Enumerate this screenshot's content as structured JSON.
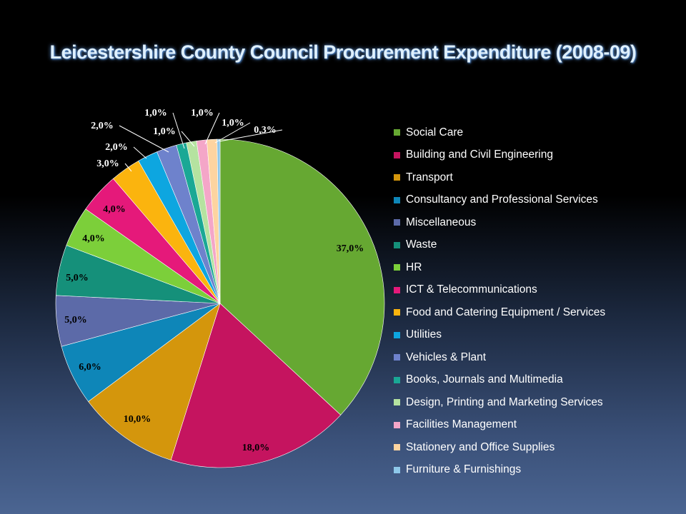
{
  "title": "Leicestershire County Council Procurement Expenditure (2008-09)",
  "chart_data": {
    "type": "pie",
    "title": "Leicestershire County Council Procurement Expenditure (2008-09)",
    "legend_position": "right",
    "slices": [
      {
        "name": "Social Care",
        "value": 37.0,
        "label": "37,0%",
        "color": "#66a832"
      },
      {
        "name": "Building and Civil Engineering",
        "value": 18.0,
        "label": "18,0%",
        "color": "#c5145f"
      },
      {
        "name": "Transport",
        "value": 10.0,
        "label": "10,0%",
        "color": "#d4960c"
      },
      {
        "name": "Consultancy and Professional Services",
        "value": 6.0,
        "label": "6,0%",
        "color": "#0e86b8"
      },
      {
        "name": "Miscellaneous",
        "value": 5.0,
        "label": "5,0%",
        "color": "#5c6aa8"
      },
      {
        "name": "Waste",
        "value": 5.0,
        "label": "5,0%",
        "color": "#15907a"
      },
      {
        "name": "HR",
        "value": 4.0,
        "label": "4,0%",
        "color": "#7ccf3a"
      },
      {
        "name": "ICT & Telecommunications",
        "value": 4.0,
        "label": "4,0%",
        "color": "#e5197a"
      },
      {
        "name": "Food and Catering Equipment / Services",
        "value": 3.0,
        "label": "3,0%",
        "color": "#fbb40e"
      },
      {
        "name": "Utilities",
        "value": 2.0,
        "label": "2,0%",
        "color": "#0da6e0"
      },
      {
        "name": "Vehicles & Plant",
        "value": 2.0,
        "label": "2,0%",
        "color": "#6e82cc"
      },
      {
        "name": "Books, Journals and Multimedia",
        "value": 1.0,
        "label": "1,0%",
        "color": "#1aa895"
      },
      {
        "name": "Design, Printing and Marketing Services",
        "value": 1.0,
        "label": "1,0%",
        "color": "#b5e3a0"
      },
      {
        "name": "Facilities Management",
        "value": 1.0,
        "label": "1,0%",
        "color": "#f4a6c8"
      },
      {
        "name": "Stationery and Office Supplies",
        "value": 1.0,
        "label": "1,0%",
        "color": "#fdd4a0"
      },
      {
        "name": "Furniture & Furnishings",
        "value": 0.3,
        "label": "0,3%",
        "color": "#8ec8ea"
      }
    ]
  }
}
